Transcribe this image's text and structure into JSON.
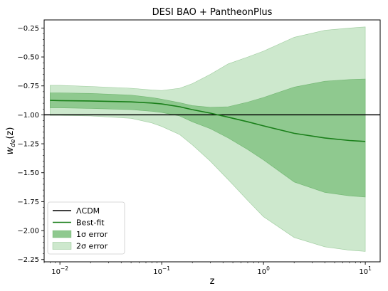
{
  "chart_data": {
    "type": "area",
    "title": "DESI BAO + PantheonPlus",
    "xlabel": "z",
    "ylabel": "w_de(z)",
    "xscale": "log",
    "xlim": [
      0.007,
      14
    ],
    "ylim": [
      -2.27,
      -0.18
    ],
    "x_ticks": [
      {
        "value": 0.01,
        "base": "10",
        "exp": "−2"
      },
      {
        "value": 0.1,
        "base": "10",
        "exp": "−1"
      },
      {
        "value": 1,
        "base": "10",
        "exp": "0"
      },
      {
        "value": 10,
        "base": "10",
        "exp": "1"
      }
    ],
    "y_ticks": [
      {
        "value": -0.25,
        "label": "−0.25"
      },
      {
        "value": -0.5,
        "label": "−0.50"
      },
      {
        "value": -0.75,
        "label": "−0.75"
      },
      {
        "value": -1.0,
        "label": "−1.00"
      },
      {
        "value": -1.25,
        "label": "−1.25"
      },
      {
        "value": -1.5,
        "label": "−1.50"
      },
      {
        "value": -1.75,
        "label": "−1.75"
      },
      {
        "value": -2.0,
        "label": "−2.00"
      },
      {
        "value": -2.25,
        "label": "−2.25"
      }
    ],
    "grid": false,
    "legend_position": "lower-left",
    "colors": {
      "lcdm": "#000000",
      "best_fit": "#1a7f1a",
      "one_sigma": "#8fc98f",
      "two_sigma": "#cde8cd",
      "band_edge": "#5aa85a"
    },
    "x": [
      0.008,
      0.01,
      0.02,
      0.05,
      0.08,
      0.1,
      0.15,
      0.2,
      0.3,
      0.45,
      0.7,
      1.0,
      2.0,
      4.0,
      7.0,
      10.0
    ],
    "series": [
      {
        "name": "ΛCDM",
        "kind": "line",
        "values": [
          -1,
          -1,
          -1,
          -1,
          -1,
          -1,
          -1,
          -1,
          -1,
          -1,
          -1,
          -1,
          -1,
          -1,
          -1,
          -1
        ]
      },
      {
        "name": "Best-fit",
        "kind": "line",
        "values": [
          -0.875,
          -0.877,
          -0.88,
          -0.888,
          -0.898,
          -0.906,
          -0.93,
          -0.955,
          -0.985,
          -1.02,
          -1.06,
          -1.095,
          -1.16,
          -1.2,
          -1.222,
          -1.23
        ]
      },
      {
        "name": "1σ error",
        "kind": "band",
        "upper": [
          -0.81,
          -0.81,
          -0.815,
          -0.83,
          -0.85,
          -0.865,
          -0.895,
          -0.92,
          -0.935,
          -0.93,
          -0.89,
          -0.85,
          -0.76,
          -0.71,
          -0.695,
          -0.69
        ],
        "lower": [
          -0.94,
          -0.94,
          -0.945,
          -0.955,
          -0.97,
          -0.98,
          -1.01,
          -1.06,
          -1.12,
          -1.2,
          -1.3,
          -1.39,
          -1.58,
          -1.67,
          -1.7,
          -1.71
        ]
      },
      {
        "name": "2σ error",
        "kind": "band",
        "upper": [
          -0.745,
          -0.745,
          -0.755,
          -0.77,
          -0.785,
          -0.79,
          -0.77,
          -0.73,
          -0.65,
          -0.56,
          -0.5,
          -0.45,
          -0.33,
          -0.27,
          -0.25,
          -0.24
        ],
        "lower": [
          -1.005,
          -1.005,
          -1.01,
          -1.03,
          -1.07,
          -1.1,
          -1.17,
          -1.26,
          -1.4,
          -1.56,
          -1.74,
          -1.88,
          -2.06,
          -2.14,
          -2.17,
          -2.18
        ]
      }
    ],
    "legend": [
      {
        "label": "ΛCDM",
        "kind": "line",
        "color_key": "lcdm"
      },
      {
        "label": "Best-fit",
        "kind": "line",
        "color_key": "best_fit"
      },
      {
        "label": "1σ error",
        "kind": "patch",
        "color_key": "one_sigma"
      },
      {
        "label": "2σ error",
        "kind": "patch",
        "color_key": "two_sigma"
      }
    ]
  }
}
